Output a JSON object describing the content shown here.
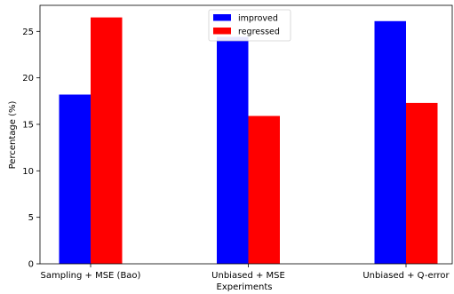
{
  "chart_data": {
    "type": "bar",
    "categories": [
      "Sampling + MSE (Bao)",
      "Unbiased + MSE",
      "Unbiased + Q-error"
    ],
    "series": [
      {
        "name": "improved",
        "color": "#0000ff",
        "values": [
          18.2,
          24.4,
          26.1
        ]
      },
      {
        "name": "regressed",
        "color": "#ff0000",
        "values": [
          26.5,
          15.9,
          17.3
        ]
      }
    ],
    "xlabel": "Experiments",
    "ylabel": "Percentage (%)",
    "ylim": [
      0,
      27.8
    ],
    "yticks": [
      0,
      5,
      10,
      15,
      20,
      25
    ],
    "legend_position": "top-center",
    "grid": false
  }
}
